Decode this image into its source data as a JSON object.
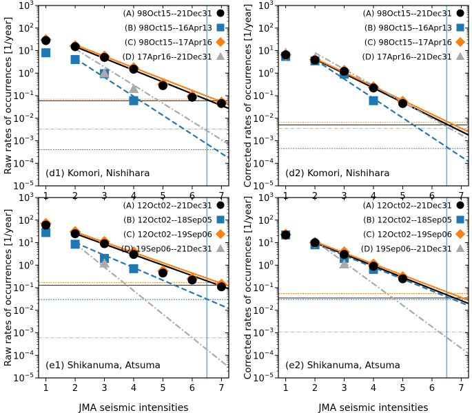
{
  "shared_xlabel": "JMA seismic intensities",
  "colors": {
    "A": "#000000",
    "B": "#1f77b4",
    "C": "#ff7f0e",
    "D": "#a9a9a9"
  },
  "chart_data": [
    {
      "type": "scatter",
      "id": "d1",
      "title": "(d1) Komori, Nishihara",
      "ylabel": "Raw rates of occurrences [1/year]",
      "xlabel": "",
      "xlim": [
        0.75,
        7.25
      ],
      "ylim_log10": [
        -5,
        3
      ],
      "x_ticks": [
        "1",
        "2",
        "3",
        "4",
        "5",
        "6",
        "7"
      ],
      "y_ticks": [
        "10^{-5}",
        "10^{-4}",
        "10^{-3}",
        "10^{-2}",
        "10^{-1}",
        "10^{0}",
        "10^{1}",
        "10^{2}",
        "10^{3}"
      ],
      "series": [
        {
          "key": "A",
          "name": "(A) 98Oct15--21Dec31",
          "marker": "circle",
          "x": [
            1,
            2,
            3,
            4,
            5,
            6,
            7
          ],
          "y": [
            28,
            15,
            5,
            1.5,
            0.28,
            0.085,
            0.045
          ],
          "fit": [
            [
              2,
              15
            ],
            [
              7.25,
              0.027
            ]
          ],
          "fit_style": "solid"
        },
        {
          "key": "B",
          "name": "(B) 98Oct15--16Apr13",
          "marker": "square",
          "x": [
            1,
            2,
            3,
            4
          ],
          "y": [
            8,
            4,
            0.95,
            0.06
          ],
          "fit": [
            [
              2,
              4.5
            ],
            [
              7.25,
              0.00017
            ]
          ],
          "fit_style": "dashed"
        },
        {
          "key": "C",
          "name": "(C) 98Oct15--17Apr16",
          "marker": "diamond",
          "x": [
            1,
            2,
            3,
            4,
            5,
            6,
            7
          ],
          "y": [
            30,
            16,
            5.5,
            1.7,
            0.32,
            0.095,
            0.05
          ],
          "fit": [
            [
              2,
              18
            ],
            [
              7.25,
              0.04
            ]
          ],
          "fit_style": "dotted"
        },
        {
          "key": "D",
          "name": "(D) 17Apr16--21Dec31",
          "marker": "triangle",
          "x": [
            3,
            4
          ],
          "y": [
            1.0,
            0.2
          ],
          "fit": [
            [
              2,
              12
            ],
            [
              7.25,
              0.0007
            ]
          ],
          "fit_style": "dashdot"
        }
      ],
      "hlines": [
        {
          "key": "A",
          "y": 0.06
        },
        {
          "key": "C",
          "y": 0.07
        },
        {
          "key": "D",
          "y": 0.0033
        },
        {
          "key": "B",
          "y": 0.0004
        }
      ],
      "vline_x": 6.5
    },
    {
      "type": "scatter",
      "id": "d2",
      "title": "(d2) Komori, Nishihara",
      "ylabel": "Corrected rates of occurrences [1/year]",
      "xlabel": "",
      "xlim": [
        0.75,
        7.25
      ],
      "ylim_log10": [
        -5,
        3
      ],
      "x_ticks": [
        "1",
        "2",
        "3",
        "4",
        "5",
        "6",
        "7"
      ],
      "y_ticks": [
        "10^{-5}",
        "10^{-4}",
        "10^{-3}",
        "10^{-2}",
        "10^{-1}",
        "10^{0}",
        "10^{1}",
        "10^{2}",
        "10^{3}"
      ],
      "series": [
        {
          "key": "A",
          "name": "(A) 98Oct15--21Dec31",
          "marker": "circle",
          "x": [
            1,
            2,
            3,
            4,
            5
          ],
          "y": [
            6.5,
            3.8,
            1.2,
            0.22,
            0.045
          ],
          "fit": [
            [
              2,
              4.2
            ],
            [
              7.25,
              0.0018
            ]
          ],
          "fit_style": "solid"
        },
        {
          "key": "B",
          "name": "(B) 98Oct15--16Apr13",
          "marker": "square",
          "x": [
            1,
            2,
            3,
            4
          ],
          "y": [
            5.5,
            3.5,
            0.9,
            0.06
          ],
          "fit": [
            [
              2,
              4.0
            ],
            [
              7.25,
              0.00012
            ]
          ],
          "fit_style": "dashed"
        },
        {
          "key": "C",
          "name": "(C) 98Oct15--17Apr16",
          "marker": "diamond",
          "x": [
            1,
            2,
            3,
            4,
            5
          ],
          "y": [
            6.5,
            4.0,
            1.3,
            0.24,
            0.055
          ],
          "fit": [
            [
              2,
              4.5
            ],
            [
              7.25,
              0.0025
            ]
          ],
          "fit_style": "dotted"
        },
        {
          "key": "D",
          "name": "(D) 17Apr16--21Dec31",
          "marker": "triangle",
          "x": [
            1
          ],
          "y": [
            8
          ],
          "fit": [
            [
              2,
              8
            ],
            [
              7.25,
              0.0012
            ]
          ],
          "fit_style": "dashdot"
        }
      ],
      "hlines": [
        {
          "key": "C",
          "y": 0.0065
        },
        {
          "key": "A",
          "y": 0.005
        },
        {
          "key": "D",
          "y": 0.0035
        },
        {
          "key": "B",
          "y": 0.00045
        }
      ],
      "vline_x": 6.5
    },
    {
      "type": "scatter",
      "id": "e1",
      "title": "(e1) Shikanuma, Atsuma",
      "ylabel": "Raw rates of occurrences [1/year]",
      "xlabel": "JMA seismic intensities",
      "xlim": [
        0.75,
        7.25
      ],
      "ylim_log10": [
        -5,
        3
      ],
      "x_ticks": [
        "1",
        "2",
        "3",
        "4",
        "5",
        "6",
        "7"
      ],
      "y_ticks": [
        "10^{-5}",
        "10^{-4}",
        "10^{-3}",
        "10^{-2}",
        "10^{-1}",
        "10^{0}",
        "10^{1}",
        "10^{2}",
        "10^{3}"
      ],
      "series": [
        {
          "key": "A",
          "name": "(A) 12Oct02--21Dec31",
          "marker": "circle",
          "x": [
            1,
            2,
            3,
            4,
            5,
            6,
            7
          ],
          "y": [
            60,
            25,
            9,
            3.0,
            0.45,
            0.22,
            0.11
          ],
          "fit": [
            [
              2,
              25
            ],
            [
              7.25,
              0.09
            ]
          ],
          "fit_style": "solid"
        },
        {
          "key": "B",
          "name": "(B) 12Oct02--18Sep05",
          "marker": "square",
          "x": [
            1,
            2,
            3,
            4
          ],
          "y": [
            28,
            8.5,
            2.0,
            0.7
          ],
          "fit": [
            [
              2,
              10
            ],
            [
              7.25,
              0.012
            ]
          ],
          "fit_style": "dashed"
        },
        {
          "key": "C",
          "name": "(C) 12Oct02--19Sep06",
          "marker": "diamond",
          "x": [
            1,
            2,
            3,
            4,
            5,
            6,
            7
          ],
          "y": [
            70,
            30,
            11,
            3.8,
            0.55,
            0.25,
            0.14
          ],
          "fit": [
            [
              2,
              30
            ],
            [
              7.25,
              0.12
            ]
          ],
          "fit_style": "dotted"
        },
        {
          "key": "D",
          "name": "(D) 19Sep06--21Dec31",
          "marker": "triangle",
          "x": [
            3
          ],
          "y": [
            1.2
          ],
          "fit": [
            [
              2,
              9
            ],
            [
              7.25,
              3e-05
            ]
          ],
          "fit_style": "dashdot"
        }
      ],
      "hlines": [
        {
          "key": "C",
          "y": 0.17
        },
        {
          "key": "A",
          "y": 0.13
        },
        {
          "key": "B",
          "y": 0.03
        },
        {
          "key": "D",
          "y": 0.0006
        }
      ],
      "vline_x": 6.5
    },
    {
      "type": "scatter",
      "id": "e2",
      "title": "(e2) Shikanuma, Atsuma",
      "ylabel": "Corrected rates of occurrences [1/year]",
      "xlabel": "JMA seismic intensities",
      "xlim": [
        0.75,
        7.25
      ],
      "ylim_log10": [
        -5,
        3
      ],
      "x_ticks": [
        "1",
        "2",
        "3",
        "4",
        "5",
        "6",
        "7"
      ],
      "y_ticks": [
        "10^{-5}",
        "10^{-4}",
        "10^{-3}",
        "10^{-2}",
        "10^{-1}",
        "10^{0}",
        "10^{1}",
        "10^{2}",
        "10^{3}"
      ],
      "series": [
        {
          "key": "A",
          "name": "(A) 12Oct02--21Dec31",
          "marker": "circle",
          "x": [
            1,
            2,
            3,
            4,
            5
          ],
          "y": [
            22,
            10,
            3.0,
            0.9,
            0.25
          ],
          "fit": [
            [
              2,
              10
            ],
            [
              7.25,
              0.02
            ]
          ],
          "fit_style": "solid"
        },
        {
          "key": "B",
          "name": "(B) 12Oct02--18Sep05",
          "marker": "square",
          "x": [
            1,
            2,
            3,
            4
          ],
          "y": [
            22,
            8.0,
            2.0,
            0.65
          ],
          "fit": [
            [
              2,
              9
            ],
            [
              7.25,
              0.016
            ]
          ],
          "fit_style": "dashed"
        },
        {
          "key": "C",
          "name": "(C) 12Oct02--19Sep06",
          "marker": "diamond",
          "x": [
            1,
            2,
            3,
            4,
            5
          ],
          "y": [
            23,
            10,
            3.8,
            1.1,
            0.3
          ],
          "fit": [
            [
              2,
              11
            ],
            [
              7.25,
              0.028
            ]
          ],
          "fit_style": "dotted"
        },
        {
          "key": "D",
          "name": "(D) 19Sep06--21Dec31",
          "marker": "triangle",
          "x": [
            3
          ],
          "y": [
            1.1
          ],
          "fit": [
            [
              2,
              12
            ],
            [
              7.25,
              0.00012
            ]
          ],
          "fit_style": "dashdot"
        }
      ],
      "hlines": [
        {
          "key": "C",
          "y": 0.055
        },
        {
          "key": "A",
          "y": 0.035
        },
        {
          "key": "B",
          "y": 0.03
        },
        {
          "key": "D",
          "y": 0.0011
        }
      ],
      "vline_x": 6.5
    }
  ]
}
